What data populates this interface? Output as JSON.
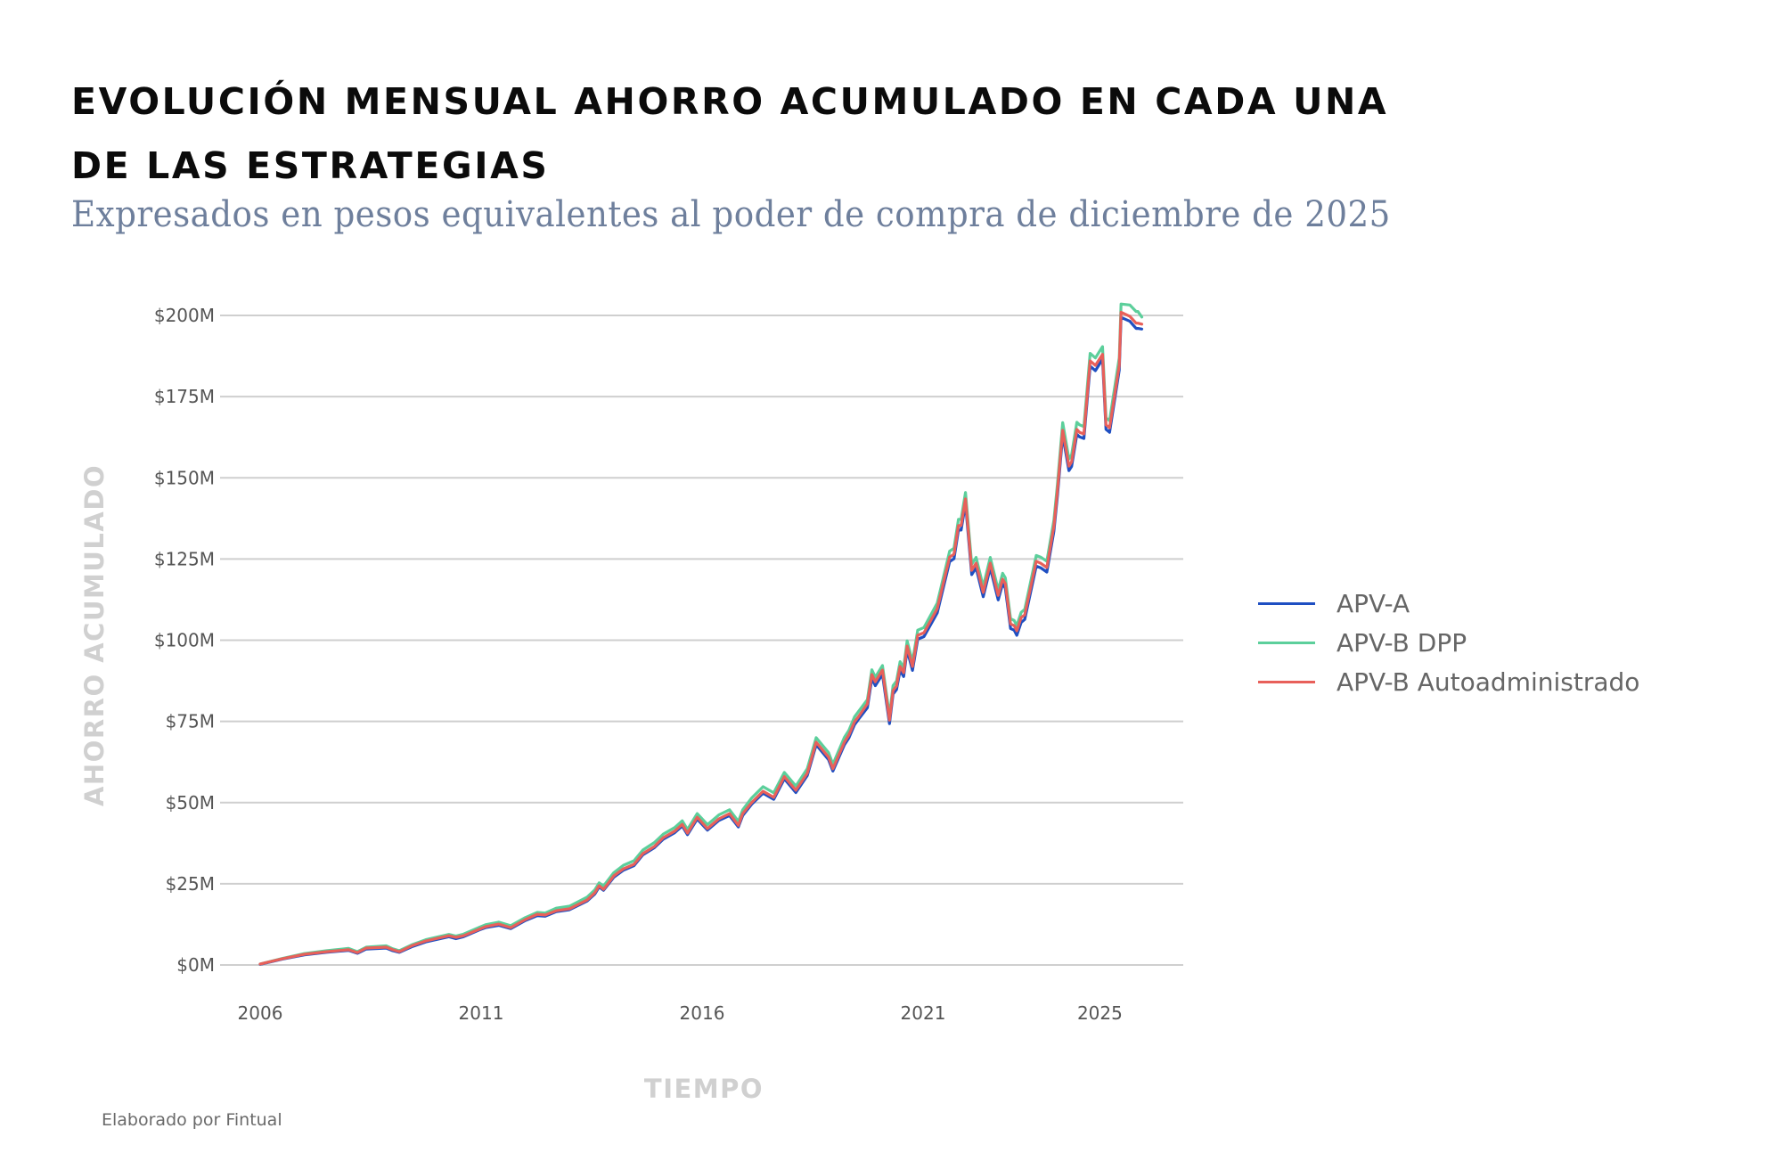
{
  "header": {
    "title_line1": "EVOLUCIÓN MENSUAL AHORRO ACUMULADO EN CADA UNA",
    "title_line2": "DE LAS ESTRATEGIAS",
    "subtitle": "Expresados en pesos equivalentes al poder de compra de diciembre de 2025"
  },
  "footer": {
    "credit": "Elaborado por Fintual"
  },
  "chart_data": {
    "type": "line",
    "title": "EVOLUCIÓN MENSUAL AHORRO ACUMULADO EN CADA UNA DE LAS ESTRATEGIAS",
    "subtitle": "Expresados en pesos equivalentes al poder de compra de diciembre de 2025",
    "xlabel": "TIEMPO",
    "ylabel": "AHORRO ACUMULADO",
    "xlim": [
      2006.0,
      2025.95
    ],
    "ylim": [
      0,
      200
    ],
    "y_unit": "millones de pesos",
    "x_ticks": [
      {
        "value": 2006,
        "label": "2006"
      },
      {
        "value": 2011,
        "label": "2011"
      },
      {
        "value": 2016,
        "label": "2016"
      },
      {
        "value": 2021,
        "label": "2021"
      },
      {
        "value": 2025,
        "label": "2025"
      }
    ],
    "y_ticks": [
      {
        "value": 0,
        "label": "$0M"
      },
      {
        "value": 25,
        "label": "$25M"
      },
      {
        "value": 50,
        "label": "$50M"
      },
      {
        "value": 75,
        "label": "$75M"
      },
      {
        "value": 100,
        "label": "$100M"
      },
      {
        "value": 125,
        "label": "$125M"
      },
      {
        "value": 150,
        "label": "$150M"
      },
      {
        "value": 175,
        "label": "$175M"
      },
      {
        "value": 200,
        "label": "$200M"
      }
    ],
    "grid": "horizontal",
    "legend_position": "right",
    "x": [
      2006.0,
      2006.5,
      2007.0,
      2007.5,
      2008.0,
      2008.2,
      2008.4,
      2008.85,
      2009.0,
      2009.15,
      2009.45,
      2009.75,
      2010.27,
      2010.43,
      2010.6,
      2010.96,
      2011.1,
      2011.4,
      2011.67,
      2012.0,
      2012.27,
      2012.45,
      2012.7,
      2013.0,
      2013.4,
      2013.57,
      2013.67,
      2013.77,
      2014.0,
      2014.22,
      2014.46,
      2014.66,
      2014.92,
      2015.12,
      2015.38,
      2015.55,
      2015.67,
      2015.89,
      2016.12,
      2016.38,
      2016.62,
      2016.82,
      2016.92,
      2017.12,
      2017.38,
      2017.62,
      2017.86,
      2018.12,
      2018.38,
      2018.58,
      2018.86,
      2018.96,
      2019.22,
      2019.32,
      2019.45,
      2019.53,
      2019.74,
      2019.84,
      2019.92,
      2020.08,
      2020.24,
      2020.32,
      2020.4,
      2020.48,
      2020.56,
      2020.64,
      2020.76,
      2020.88,
      2021.02,
      2021.32,
      2021.6,
      2021.7,
      2021.8,
      2021.86,
      2021.96,
      2022.1,
      2022.2,
      2022.36,
      2022.52,
      2022.7,
      2022.8,
      2022.86,
      2022.98,
      2023.06,
      2023.12,
      2023.22,
      2023.3,
      2023.56,
      2023.66,
      2023.8,
      2023.96,
      2024.04,
      2024.16,
      2024.3,
      2024.36,
      2024.48,
      2024.54,
      2024.64,
      2024.78,
      2024.9,
      2025.06,
      2025.14,
      2025.22,
      2025.44,
      2025.48,
      2025.68,
      2025.82,
      2025.86,
      2025.95
    ],
    "series": [
      {
        "name": "APV-A",
        "color": "#1f4fc2",
        "values": [
          0.2,
          1.8,
          3.1,
          3.9,
          4.5,
          3.6,
          4.9,
          5.2,
          4.4,
          3.9,
          5.7,
          7.1,
          8.7,
          8.1,
          8.7,
          10.8,
          11.5,
          12.2,
          11.2,
          13.7,
          15.2,
          15.0,
          16.4,
          17.0,
          19.7,
          21.8,
          24.0,
          23.0,
          27.0,
          29.2,
          30.6,
          33.9,
          36.1,
          38.7,
          40.7,
          42.8,
          40.1,
          44.9,
          41.5,
          44.5,
          46.0,
          42.5,
          46.0,
          49.5,
          52.9,
          51.0,
          57.3,
          53.1,
          58.3,
          67.8,
          63.2,
          59.7,
          67.8,
          69.9,
          74.0,
          75.5,
          79.2,
          88.2,
          86.0,
          89.5,
          74.3,
          83.4,
          84.8,
          90.7,
          88.8,
          97.0,
          90.7,
          100.3,
          101.1,
          108.4,
          124.2,
          125.1,
          133.9,
          133.9,
          142.1,
          120.2,
          122.3,
          113.4,
          122.3,
          112.4,
          117.4,
          116.0,
          103.6,
          103.1,
          101.5,
          105.5,
          106.4,
          122.8,
          122.3,
          121.0,
          133.5,
          144.5,
          163.2,
          152.2,
          153.5,
          163.4,
          162.6,
          162.1,
          184.4,
          183.0,
          186.5,
          164.9,
          164.0,
          183.2,
          199.4,
          198.2,
          196.0,
          196.0,
          195.8
        ]
      },
      {
        "name": "APV-B DPP",
        "color": "#5ccf9b",
        "values": [
          0.3,
          2.0,
          3.5,
          4.4,
          5.1,
          4.1,
          5.5,
          5.9,
          5.0,
          4.4,
          6.3,
          7.8,
          9.4,
          8.9,
          9.5,
          11.6,
          12.4,
          13.2,
          12.1,
          14.6,
          16.2,
          16.0,
          17.5,
          18.1,
          20.9,
          23.1,
          25.3,
          24.3,
          28.4,
          30.7,
          32.1,
          35.4,
          37.7,
          40.3,
          42.3,
          44.4,
          41.7,
          46.6,
          43.2,
          46.2,
          47.8,
          44.2,
          47.8,
          51.4,
          54.9,
          53.0,
          59.3,
          55.1,
          60.4,
          70.0,
          65.4,
          61.8,
          70.1,
          72.2,
          76.4,
          77.9,
          81.7,
          90.9,
          88.6,
          92.2,
          76.8,
          86.0,
          87.4,
          93.4,
          91.5,
          99.8,
          93.4,
          103.1,
          103.9,
          111.4,
          127.4,
          128.3,
          137.2,
          137.2,
          145.5,
          123.4,
          125.5,
          116.5,
          125.5,
          115.5,
          120.6,
          119.2,
          106.6,
          106.1,
          104.5,
          108.6,
          109.5,
          126.1,
          125.6,
          124.3,
          136.9,
          148.0,
          167.0,
          155.8,
          157.1,
          167.1,
          166.3,
          165.8,
          188.3,
          186.9,
          190.4,
          168.5,
          167.6,
          187.0,
          203.5,
          203.2,
          201.2,
          201.2,
          199.5
        ]
      },
      {
        "name": "APV-B Autoadministrado",
        "color": "#e8605a",
        "values": [
          0.3,
          1.9,
          3.3,
          4.1,
          4.7,
          3.8,
          5.2,
          5.5,
          4.7,
          4.1,
          6.0,
          7.4,
          9.0,
          8.5,
          9.0,
          11.0,
          11.8,
          12.6,
          11.5,
          14.0,
          15.6,
          15.4,
          16.7,
          17.3,
          20.0,
          22.2,
          24.4,
          23.3,
          27.4,
          29.6,
          31.0,
          34.3,
          36.5,
          39.2,
          41.2,
          43.3,
          40.6,
          45.5,
          42.0,
          45.0,
          46.6,
          43.0,
          46.6,
          50.0,
          53.5,
          51.6,
          58.0,
          53.8,
          59.0,
          68.6,
          64.0,
          60.4,
          68.6,
          70.8,
          74.9,
          76.3,
          80.4,
          89.4,
          87.2,
          90.8,
          75.4,
          84.5,
          85.9,
          91.9,
          90.0,
          98.2,
          91.9,
          101.5,
          102.3,
          109.7,
          125.6,
          126.5,
          135.3,
          135.3,
          143.5,
          121.5,
          123.7,
          114.7,
          123.7,
          113.8,
          118.8,
          117.4,
          105.0,
          104.5,
          102.9,
          107.0,
          107.8,
          124.3,
          123.7,
          122.4,
          135.0,
          146.0,
          164.6,
          153.6,
          154.9,
          164.9,
          164.0,
          163.5,
          186.0,
          184.6,
          188.0,
          166.3,
          165.4,
          184.6,
          201.0,
          199.7,
          197.6,
          197.6,
          197.3
        ]
      }
    ]
  }
}
